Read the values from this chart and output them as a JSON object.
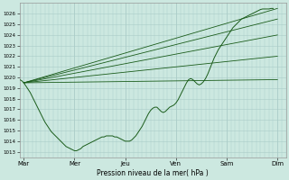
{
  "background_color": "#cce8e0",
  "grid_color": "#aaccc8",
  "line_color": "#1a5c1a",
  "ylim": [
    1012.5,
    1027.0
  ],
  "yticks": [
    1013,
    1014,
    1015,
    1016,
    1017,
    1018,
    1019,
    1020,
    1021,
    1022,
    1023,
    1024,
    1025,
    1026
  ],
  "xlim": [
    0,
    126
  ],
  "xtick_positions": [
    2,
    26,
    50,
    74,
    98,
    122
  ],
  "xtick_labels": [
    "Mar",
    "Mer",
    "Jeu",
    "Ven",
    "Sam",
    "Dim"
  ],
  "xlabel": "Pression niveau de la mer( hPa )",
  "pivot_x": 2,
  "pivot_y": 1019.5,
  "fan_lines": [
    [
      2,
      1019.5,
      122,
      1026.5
    ],
    [
      2,
      1019.5,
      122,
      1025.5
    ],
    [
      2,
      1019.5,
      122,
      1024.0
    ],
    [
      2,
      1019.5,
      122,
      1022.0
    ],
    [
      2,
      1019.5,
      122,
      1019.8
    ]
  ],
  "observed": [
    [
      0,
      1019.8
    ],
    [
      1,
      1019.7
    ],
    [
      2,
      1019.5
    ],
    [
      3,
      1019.2
    ],
    [
      4,
      1018.9
    ],
    [
      5,
      1018.6
    ],
    [
      6,
      1018.2
    ],
    [
      7,
      1017.8
    ],
    [
      8,
      1017.4
    ],
    [
      9,
      1017.0
    ],
    [
      10,
      1016.6
    ],
    [
      11,
      1016.2
    ],
    [
      12,
      1015.8
    ],
    [
      13,
      1015.5
    ],
    [
      14,
      1015.2
    ],
    [
      15,
      1014.9
    ],
    [
      16,
      1014.7
    ],
    [
      17,
      1014.5
    ],
    [
      18,
      1014.3
    ],
    [
      19,
      1014.1
    ],
    [
      20,
      1013.9
    ],
    [
      21,
      1013.7
    ],
    [
      22,
      1013.5
    ],
    [
      23,
      1013.4
    ],
    [
      24,
      1013.3
    ],
    [
      25,
      1013.2
    ],
    [
      26,
      1013.1
    ],
    [
      27,
      1013.1
    ],
    [
      28,
      1013.2
    ],
    [
      29,
      1013.3
    ],
    [
      30,
      1013.5
    ],
    [
      31,
      1013.6
    ],
    [
      32,
      1013.7
    ],
    [
      33,
      1013.8
    ],
    [
      34,
      1013.9
    ],
    [
      35,
      1014.0
    ],
    [
      36,
      1014.1
    ],
    [
      37,
      1014.2
    ],
    [
      38,
      1014.3
    ],
    [
      39,
      1014.4
    ],
    [
      40,
      1014.4
    ],
    [
      41,
      1014.5
    ],
    [
      42,
      1014.5
    ],
    [
      43,
      1014.5
    ],
    [
      44,
      1014.5
    ],
    [
      45,
      1014.4
    ],
    [
      46,
      1014.4
    ],
    [
      47,
      1014.3
    ],
    [
      48,
      1014.2
    ],
    [
      49,
      1014.1
    ],
    [
      50,
      1014.0
    ],
    [
      51,
      1014.0
    ],
    [
      52,
      1014.0
    ],
    [
      53,
      1014.1
    ],
    [
      54,
      1014.3
    ],
    [
      55,
      1014.5
    ],
    [
      56,
      1014.8
    ],
    [
      57,
      1015.1
    ],
    [
      58,
      1015.4
    ],
    [
      59,
      1015.8
    ],
    [
      60,
      1016.2
    ],
    [
      61,
      1016.6
    ],
    [
      62,
      1016.9
    ],
    [
      63,
      1017.1
    ],
    [
      64,
      1017.2
    ],
    [
      65,
      1017.2
    ],
    [
      66,
      1017.0
    ],
    [
      67,
      1016.8
    ],
    [
      68,
      1016.7
    ],
    [
      69,
      1016.8
    ],
    [
      70,
      1017.0
    ],
    [
      71,
      1017.2
    ],
    [
      72,
      1017.3
    ],
    [
      73,
      1017.4
    ],
    [
      74,
      1017.6
    ],
    [
      75,
      1017.9
    ],
    [
      76,
      1018.3
    ],
    [
      77,
      1018.7
    ],
    [
      78,
      1019.1
    ],
    [
      79,
      1019.5
    ],
    [
      80,
      1019.8
    ],
    [
      81,
      1019.9
    ],
    [
      82,
      1019.8
    ],
    [
      83,
      1019.6
    ],
    [
      84,
      1019.4
    ],
    [
      85,
      1019.3
    ],
    [
      86,
      1019.4
    ],
    [
      87,
      1019.6
    ],
    [
      88,
      1019.9
    ],
    [
      89,
      1020.3
    ],
    [
      90,
      1020.8
    ],
    [
      91,
      1021.3
    ],
    [
      92,
      1021.8
    ],
    [
      93,
      1022.2
    ],
    [
      94,
      1022.6
    ],
    [
      95,
      1022.9
    ],
    [
      96,
      1023.2
    ],
    [
      97,
      1023.5
    ],
    [
      98,
      1023.8
    ],
    [
      99,
      1024.1
    ],
    [
      100,
      1024.4
    ],
    [
      101,
      1024.7
    ],
    [
      102,
      1024.9
    ],
    [
      103,
      1025.1
    ],
    [
      104,
      1025.3
    ],
    [
      105,
      1025.5
    ],
    [
      106,
      1025.6
    ],
    [
      107,
      1025.7
    ],
    [
      108,
      1025.8
    ],
    [
      109,
      1025.9
    ],
    [
      110,
      1026.0
    ],
    [
      111,
      1026.1
    ],
    [
      112,
      1026.2
    ],
    [
      113,
      1026.3
    ],
    [
      114,
      1026.4
    ],
    [
      115,
      1026.45
    ],
    [
      116,
      1026.45
    ],
    [
      117,
      1026.45
    ],
    [
      118,
      1026.45
    ],
    [
      119,
      1026.5
    ],
    [
      120,
      1026.5
    ]
  ]
}
